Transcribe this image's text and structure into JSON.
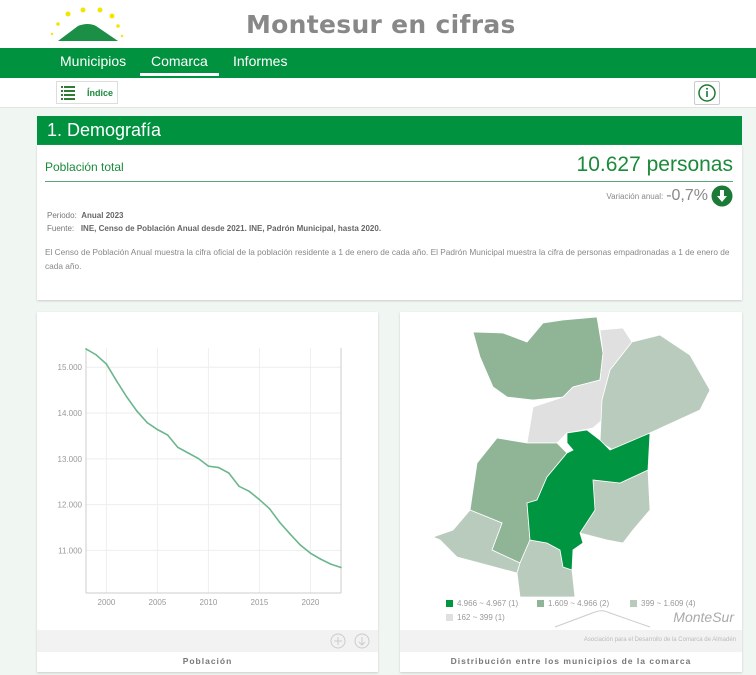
{
  "header": {
    "title": "Montesur en cifras",
    "logo": "Montesur mountain logo with stars"
  },
  "nav": {
    "items": [
      "Municipios",
      "Comarca",
      "Informes"
    ],
    "active": "Comarca"
  },
  "toolbar": {
    "index_label": "Índice",
    "info_icon": "info-icon",
    "list_icon": "list-icon"
  },
  "section": {
    "title": "1. Demografía"
  },
  "indicator": {
    "label": "Población total",
    "value": "10.627 personas",
    "variation_label": "Variación anual:",
    "variation_value": "-0,7%",
    "variation_icon": "arrow-down-circle-icon",
    "period_label": "Periodo:",
    "period_value": "Anual 2023",
    "source_label": "Fuente:",
    "source_value": "INE, Censo de Población Anual desde 2021. INE, Padrón Municipal, hasta 2020.",
    "description": "El Censo de Población Anual muestra la cifra oficial de la población residente a 1 de enero de cada año. El Padrón Municipal muestra la cifra de personas empadronadas a 1 de enero de cada año."
  },
  "colors": {
    "brand": "#00923f",
    "map_high": "#009540",
    "map_mid": "#8fb596",
    "map_low": "#b9cbbd",
    "map_min": "#e0e0e0",
    "line": "#6cb68e"
  },
  "chart_panel": {
    "caption": "Población",
    "icons": [
      "plus-circle-icon",
      "download-icon"
    ]
  },
  "map_panel": {
    "caption": "Distribución entre los municipios de la comarca",
    "legend": [
      {
        "label": "4.966 ~ 4.967 (1)",
        "color": "#009540"
      },
      {
        "label": "1.609 ~ 4.966 (2)",
        "color": "#8fb596"
      },
      {
        "label": "399 ~ 1.609 (4)",
        "color": "#b9cbbd"
      },
      {
        "label": "162 ~ 399 (1)",
        "color": "#e0e0e0"
      }
    ],
    "watermark": "MonteSur",
    "watermark_sub": "Asociación para el Desarrollo de la Comarca de Almadén"
  },
  "chart_data": {
    "type": "line",
    "title": "",
    "xlabel": "",
    "ylabel": "",
    "grid": true,
    "x": [
      1998,
      1999,
      2000,
      2001,
      2002,
      2003,
      2004,
      2005,
      2006,
      2007,
      2008,
      2009,
      2010,
      2011,
      2012,
      2013,
      2014,
      2015,
      2016,
      2017,
      2018,
      2019,
      2020,
      2021,
      2022,
      2023
    ],
    "values": [
      15400,
      15270,
      15070,
      14700,
      14350,
      14040,
      13790,
      13640,
      13520,
      13250,
      13130,
      13010,
      12840,
      12810,
      12690,
      12400,
      12290,
      12110,
      11910,
      11610,
      11360,
      11120,
      10940,
      10810,
      10700,
      10627
    ],
    "xlim": [
      1998,
      2023
    ],
    "ylim": [
      10070,
      15420
    ],
    "xticks": [
      "2000",
      "2005",
      "2010",
      "2015",
      "2020"
    ],
    "yticks": [
      "11.000",
      "12.000",
      "13.000",
      "14.000",
      "15.000"
    ]
  }
}
